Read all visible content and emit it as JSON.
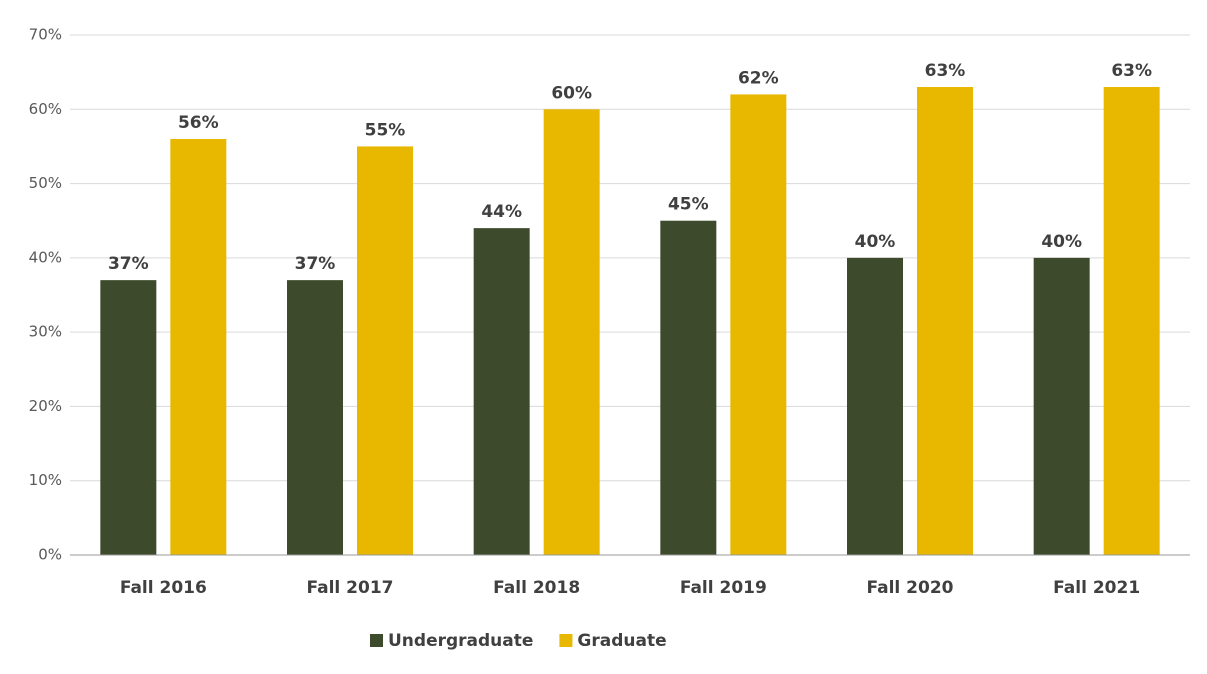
{
  "chart_data": {
    "type": "bar",
    "categories": [
      "Fall 2016",
      "Fall 2017",
      "Fall 2018",
      "Fall 2019",
      "Fall 2020",
      "Fall 2021"
    ],
    "series": [
      {
        "name": "Undergraduate",
        "color": "#3d4a2c",
        "values": [
          37,
          37,
          44,
          45,
          40,
          40
        ],
        "value_labels": [
          "37%",
          "37%",
          "44%",
          "45%",
          "40%",
          "40%"
        ]
      },
      {
        "name": "Graduate",
        "color": "#e8b800",
        "values": [
          56,
          55,
          60,
          62,
          63,
          63
        ],
        "value_labels": [
          "56%",
          "55%",
          "60%",
          "62%",
          "63%",
          "63%"
        ]
      }
    ],
    "ylim": [
      0,
      70
    ],
    "yticks": [
      {
        "value": 0,
        "label": "0%"
      },
      {
        "value": 10,
        "label": "10%"
      },
      {
        "value": 20,
        "label": "20%"
      },
      {
        "value": 30,
        "label": "30%"
      },
      {
        "value": 40,
        "label": "40%"
      },
      {
        "value": 50,
        "label": "50%"
      },
      {
        "value": 60,
        "label": "60%"
      },
      {
        "value": 70,
        "label": "70%"
      }
    ],
    "grid": true,
    "legend": "bottom"
  }
}
